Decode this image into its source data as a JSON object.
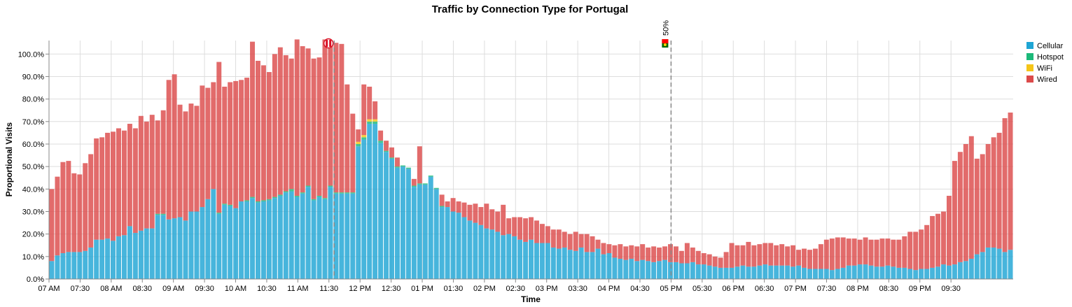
{
  "chart_data": {
    "type": "bar",
    "stacked": true,
    "title": "Traffic by Connection Type for Portugal",
    "xlabel": "Time",
    "ylabel": "Proportional Visits",
    "ylim": [
      0,
      1.06
    ],
    "y_ticks": [
      0,
      0.1,
      0.2,
      0.3,
      0.4,
      0.5,
      0.6,
      0.7,
      0.8,
      0.9,
      1.0
    ],
    "y_tick_labels": [
      "0.0%",
      "10.0%",
      "20.0%",
      "30.0%",
      "40.0%",
      "50.0%",
      "60.0%",
      "70.0%",
      "80.0%",
      "90.0%",
      "100.0%"
    ],
    "x_start": "07:00",
    "x_end": "22:25",
    "bin_minutes": 5,
    "x_ticks": [
      "07 AM",
      "07:30",
      "08 AM",
      "08:30",
      "09 AM",
      "09:30",
      "10 AM",
      "10:30",
      "11 AM",
      "11:30",
      "12 PM",
      "12:30",
      "01 PM",
      "01:30",
      "02 PM",
      "02:30",
      "03 PM",
      "03:30",
      "04 PM",
      "04:30",
      "05 PM",
      "05:30",
      "06 PM",
      "06:30",
      "07 PM",
      "07:30",
      "08 PM",
      "08:30",
      "09 PM",
      "09:30"
    ],
    "grid": true,
    "legend_position": "top-right",
    "legend": [
      "Cellular",
      "Hotspot",
      "WiFi",
      "Wired"
    ],
    "colors": {
      "Cellular": "#1ea5d4",
      "Hotspot": "#1cb979",
      "WiFi": "#f5c518",
      "Wired": "#dc4a4a"
    },
    "totals": [
      0.4,
      0.455,
      0.52,
      0.525,
      0.47,
      0.465,
      0.515,
      0.555,
      0.625,
      0.63,
      0.65,
      0.655,
      0.67,
      0.66,
      0.69,
      0.67,
      0.725,
      0.7,
      0.73,
      0.705,
      0.75,
      0.885,
      0.91,
      0.775,
      0.745,
      0.78,
      0.77,
      0.86,
      0.85,
      0.875,
      0.965,
      0.855,
      0.875,
      0.88,
      0.885,
      0.895,
      1.055,
      0.97,
      0.95,
      0.92,
      1.0,
      1.03,
      0.995,
      0.98,
      1.065,
      1.035,
      1.025,
      0.98,
      0.985,
      1.065,
      1.055,
      1.05,
      1.045,
      0.865,
      0.735,
      0.665,
      0.865,
      0.855,
      0.79,
      0.66,
      0.615,
      0.585,
      0.54,
      0.49,
      0.475,
      0.445,
      0.59,
      0.4,
      0.39,
      0.385,
      0.375,
      0.345,
      0.36,
      0.345,
      0.34,
      0.33,
      0.335,
      0.32,
      0.335,
      0.31,
      0.3,
      0.33,
      0.27,
      0.275,
      0.275,
      0.27,
      0.275,
      0.26,
      0.245,
      0.235,
      0.22,
      0.22,
      0.21,
      0.2,
      0.21,
      0.2,
      0.2,
      0.19,
      0.175,
      0.16,
      0.155,
      0.15,
      0.155,
      0.145,
      0.15,
      0.145,
      0.155,
      0.14,
      0.145,
      0.14,
      0.145,
      0.155,
      0.145,
      0.125,
      0.16,
      0.14,
      0.125,
      0.115,
      0.11,
      0.1,
      0.095,
      0.12,
      0.16,
      0.15,
      0.15,
      0.165,
      0.15,
      0.155,
      0.16,
      0.16,
      0.15,
      0.155,
      0.145,
      0.15,
      0.13,
      0.135,
      0.13,
      0.135,
      0.155,
      0.175,
      0.18,
      0.185,
      0.185,
      0.18,
      0.18,
      0.175,
      0.185,
      0.175,
      0.175,
      0.18,
      0.18,
      0.175,
      0.175,
      0.19,
      0.21,
      0.21,
      0.22,
      0.24,
      0.28,
      0.29,
      0.3,
      0.37,
      0.525,
      0.565,
      0.6,
      0.635,
      0.535,
      0.555,
      0.6,
      0.63,
      0.65,
      0.715,
      0.74
    ],
    "cellular": [
      0.08,
      0.105,
      0.115,
      0.12,
      0.12,
      0.12,
      0.125,
      0.14,
      0.175,
      0.175,
      0.18,
      0.17,
      0.19,
      0.195,
      0.235,
      0.205,
      0.215,
      0.225,
      0.225,
      0.285,
      0.285,
      0.265,
      0.27,
      0.275,
      0.26,
      0.3,
      0.3,
      0.32,
      0.355,
      0.4,
      0.29,
      0.33,
      0.325,
      0.315,
      0.345,
      0.345,
      0.36,
      0.34,
      0.345,
      0.35,
      0.36,
      0.37,
      0.385,
      0.39,
      0.365,
      0.38,
      0.41,
      0.35,
      0.365,
      0.355,
      0.41,
      0.38,
      0.38,
      0.38,
      0.38,
      0.59,
      0.62,
      0.69,
      0.69,
      0.605,
      0.565,
      0.535,
      0.495,
      0.5,
      0.49,
      0.41,
      0.42,
      0.42,
      0.455,
      0.4,
      0.32,
      0.32,
      0.3,
      0.295,
      0.275,
      0.26,
      0.25,
      0.24,
      0.225,
      0.22,
      0.21,
      0.195,
      0.2,
      0.19,
      0.175,
      0.165,
      0.175,
      0.16,
      0.16,
      0.16,
      0.14,
      0.135,
      0.14,
      0.13,
      0.125,
      0.14,
      0.12,
      0.12,
      0.135,
      0.11,
      0.115,
      0.095,
      0.09,
      0.085,
      0.09,
      0.08,
      0.085,
      0.08,
      0.075,
      0.08,
      0.085,
      0.075,
      0.075,
      0.07,
      0.07,
      0.075,
      0.065,
      0.065,
      0.06,
      0.055,
      0.05,
      0.05,
      0.05,
      0.055,
      0.06,
      0.055,
      0.055,
      0.06,
      0.065,
      0.06,
      0.06,
      0.06,
      0.06,
      0.055,
      0.06,
      0.05,
      0.045,
      0.045,
      0.045,
      0.045,
      0.04,
      0.045,
      0.05,
      0.06,
      0.06,
      0.065,
      0.065,
      0.06,
      0.055,
      0.055,
      0.06,
      0.055,
      0.05,
      0.05,
      0.045,
      0.04,
      0.045,
      0.045,
      0.05,
      0.055,
      0.065,
      0.06,
      0.065,
      0.075,
      0.08,
      0.09,
      0.11,
      0.12,
      0.14,
      0.14,
      0.135,
      0.12,
      0.13,
      0.155,
      0.165,
      0.185,
      0.17,
      0.19
    ],
    "hotspot": [
      0,
      0,
      0,
      0,
      0,
      0,
      0,
      0,
      0,
      0,
      0,
      0,
      0,
      0,
      0,
      0,
      0,
      0,
      0,
      0.005,
      0.005,
      0,
      0,
      0,
      0,
      0,
      0,
      0,
      0,
      0,
      0.005,
      0.005,
      0.005,
      0,
      0,
      0.005,
      0.005,
      0.005,
      0.005,
      0.005,
      0.005,
      0.005,
      0.005,
      0.01,
      0.005,
      0.005,
      0.005,
      0.005,
      0.005,
      0.005,
      0.005,
      0.005,
      0.005,
      0.005,
      0.005,
      0.01,
      0.01,
      0.01,
      0.01,
      0.01,
      0.005,
      0.005,
      0.005,
      0.005,
      0.005,
      0.005,
      0.005,
      0.005,
      0.005,
      0.005,
      0.005,
      0,
      0,
      0,
      0,
      0,
      0,
      0,
      0,
      0,
      0,
      0,
      0,
      0,
      0,
      0,
      0,
      0,
      0,
      0,
      0,
      0,
      0,
      0,
      0,
      0,
      0,
      0,
      0,
      0,
      0,
      0,
      0,
      0,
      0,
      0,
      0,
      0,
      0,
      0,
      0,
      0,
      0,
      0,
      0,
      0,
      0,
      0,
      0,
      0,
      0,
      0,
      0,
      0,
      0,
      0,
      0,
      0,
      0,
      0,
      0,
      0,
      0,
      0,
      0,
      0,
      0,
      0,
      0,
      0,
      0,
      0,
      0,
      0,
      0,
      0,
      0,
      0,
      0,
      0,
      0,
      0,
      0,
      0,
      0,
      0,
      0,
      0,
      0,
      0,
      0,
      0,
      0,
      0,
      0,
      0,
      0,
      0,
      0,
      0,
      0,
      0,
      0,
      0,
      0,
      0,
      0,
      0,
      0,
      0,
      0
    ],
    "wifi": [
      0,
      0,
      0,
      0,
      0,
      0,
      0,
      0,
      0,
      0,
      0,
      0,
      0,
      0,
      0,
      0,
      0,
      0,
      0,
      0,
      0,
      0,
      0,
      0,
      0,
      0,
      0,
      0,
      0,
      0,
      0,
      0,
      0,
      0,
      0,
      0,
      0,
      0,
      0,
      0,
      0,
      0,
      0,
      0,
      0,
      0,
      0,
      0,
      0,
      0,
      0,
      0,
      0,
      0,
      0,
      0.01,
      0.01,
      0.01,
      0.01,
      0,
      0,
      0,
      0,
      0,
      0,
      0,
      0,
      0,
      0,
      0,
      0,
      0,
      0,
      0,
      0,
      0,
      0,
      0,
      0,
      0,
      0,
      0,
      0,
      0,
      0,
      0,
      0,
      0,
      0,
      0,
      0,
      0,
      0,
      0,
      0,
      0,
      0,
      0,
      0,
      0,
      0,
      0,
      0,
      0,
      0,
      0,
      0,
      0,
      0,
      0,
      0,
      0,
      0,
      0,
      0,
      0,
      0,
      0,
      0,
      0,
      0,
      0,
      0,
      0,
      0,
      0,
      0,
      0,
      0,
      0,
      0,
      0,
      0,
      0,
      0,
      0,
      0,
      0,
      0,
      0,
      0,
      0,
      0,
      0,
      0,
      0,
      0,
      0,
      0,
      0,
      0,
      0,
      0,
      0,
      0,
      0,
      0,
      0,
      0,
      0,
      0,
      0,
      0,
      0,
      0,
      0,
      0,
      0,
      0,
      0,
      0,
      0,
      0,
      0,
      0,
      0,
      0
    ],
    "markers": [
      {
        "time": "11:35",
        "label": "",
        "icon": "peru-flag-icon"
      },
      {
        "time": "17:00",
        "label": "50%",
        "icon": "portugal-flag-icon"
      }
    ]
  }
}
